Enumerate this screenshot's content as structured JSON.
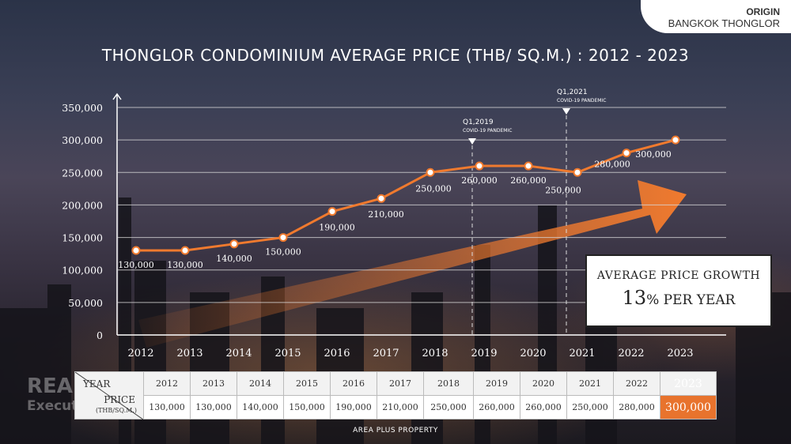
{
  "brand": {
    "line1": "ORIGIN",
    "line2": "BANGKOK THONGLOR"
  },
  "watermark": {
    "line1": "REAL",
    "line2": "Execut"
  },
  "growth_box": {
    "line1": "AVERAGE PRICE GROWTH",
    "value": "13",
    "unit": "% PER YEAR"
  },
  "table": {
    "corner_year": "YEAR",
    "corner_price": "PRICE",
    "corner_unit": "(THB/SQ.M.)",
    "years": [
      "2012",
      "2013",
      "2014",
      "2015",
      "2016",
      "2017",
      "2018",
      "2019",
      "2020",
      "2021",
      "2022",
      "2023"
    ],
    "prices": [
      "130,000",
      "130,000",
      "140,000",
      "150,000",
      "190,000",
      "210,000",
      "250,000",
      "260,000",
      "260,000",
      "250,000",
      "280,000",
      "300,000"
    ]
  },
  "source": "AREA PLUS PROPERTY",
  "colors": {
    "line": "#f07a2e",
    "arrow": "#f07a2e",
    "highlight": "#e8732d"
  },
  "chart_data": {
    "type": "line",
    "title": "THONGLOR CONDOMINIUM AVERAGE PRICE (THB/ SQ.M.) : 2012 - 2023",
    "categories": [
      "2012",
      "2013",
      "2014",
      "2015",
      "2016",
      "2017",
      "2018",
      "2019",
      "2020",
      "2021",
      "2022",
      "2023"
    ],
    "values": [
      130000,
      130000,
      140000,
      150000,
      190000,
      210000,
      250000,
      260000,
      260000,
      250000,
      280000,
      300000
    ],
    "data_labels": [
      "130,000",
      "130,000",
      "140,000",
      "150,000",
      "190,000",
      "210,000",
      "250,000",
      "260,000",
      "260,000",
      "250,000",
      "280,000",
      "300,000"
    ],
    "ylim": [
      0,
      350000
    ],
    "yticks": [
      "0",
      "50,000",
      "100,000",
      "150,000",
      "200,000",
      "250,000",
      "300,000",
      "350,000"
    ],
    "ytick_values": [
      0,
      50000,
      100000,
      150000,
      200000,
      250000,
      300000,
      350000
    ],
    "grid": true,
    "annotations": [
      {
        "x": "2019",
        "line1": "Q1,2019",
        "line2": "COVID-19 PANDEMIC"
      },
      {
        "x": "2021",
        "line1": "Q1,2021",
        "line2": "COVID-19 PANDEMIC"
      }
    ]
  }
}
